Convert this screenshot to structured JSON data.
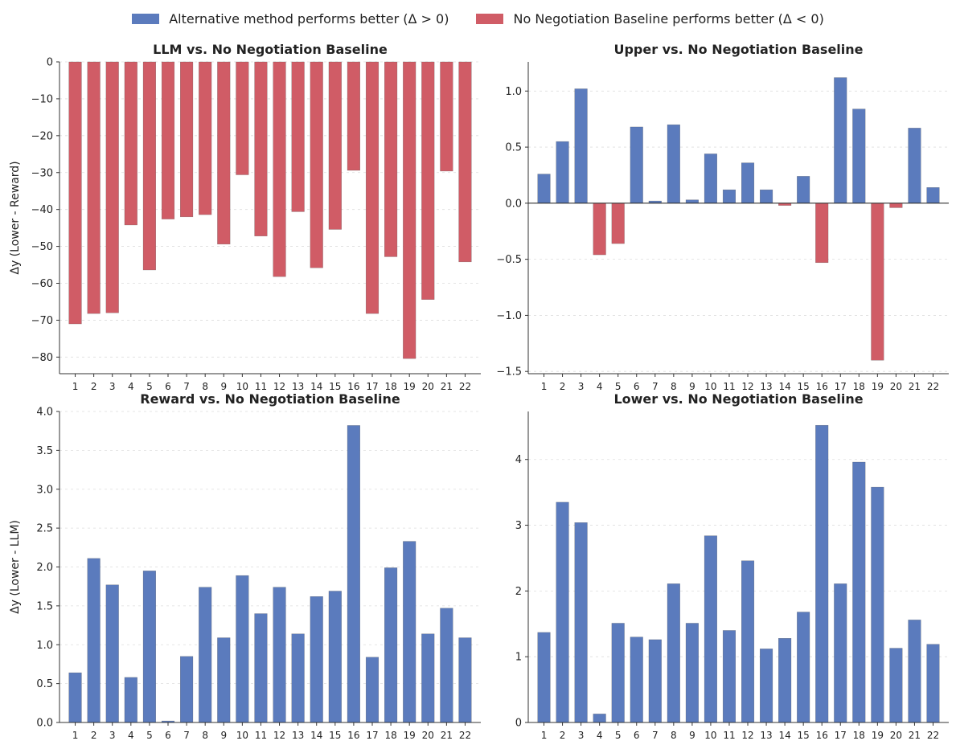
{
  "legend": {
    "positive_label": "Alternative method performs better (Δ > 0)",
    "negative_label": "No Negotiation Baseline performs better (Δ < 0)",
    "positive_color": "#5b7bbd",
    "negative_color": "#d05c66"
  },
  "chart_data": [
    {
      "type": "bar",
      "title": "LLM vs. No Negotiation Baseline",
      "ylabel": "Δy (Lower - Reward)",
      "xlabel": "",
      "categories": [
        "1",
        "2",
        "3",
        "4",
        "5",
        "6",
        "7",
        "8",
        "9",
        "10",
        "11",
        "12",
        "13",
        "14",
        "15",
        "16",
        "17",
        "18",
        "19",
        "20",
        "21",
        "22"
      ],
      "values": [
        -71.0,
        -68.2,
        -68.0,
        -44.2,
        -56.4,
        -42.6,
        -42.0,
        -41.4,
        -49.4,
        -30.6,
        -47.2,
        -58.2,
        -40.6,
        -55.8,
        -45.4,
        -29.4,
        -68.2,
        -52.8,
        -80.4,
        -64.4,
        -29.6,
        -54.2
      ],
      "ylim": [
        -84.5,
        0
      ],
      "yticks": [
        0,
        -10,
        -20,
        -30,
        -40,
        -50,
        -60,
        -70,
        -80
      ],
      "yticklabels": [
        "0",
        "−10",
        "−20",
        "−30",
        "−40",
        "−50",
        "−60",
        "−70",
        "−80"
      ]
    },
    {
      "type": "bar",
      "title": "Upper vs. No Negotiation Baseline",
      "ylabel": "",
      "xlabel": "",
      "categories": [
        "1",
        "2",
        "3",
        "4",
        "5",
        "6",
        "7",
        "8",
        "9",
        "10",
        "11",
        "12",
        "13",
        "14",
        "15",
        "16",
        "17",
        "18",
        "19",
        "20",
        "21",
        "22"
      ],
      "values": [
        0.26,
        0.55,
        1.02,
        -0.46,
        -0.36,
        0.68,
        0.02,
        0.7,
        0.03,
        0.44,
        0.12,
        0.36,
        0.12,
        -0.02,
        0.24,
        -0.53,
        1.12,
        0.84,
        -1.4,
        -0.04,
        0.67,
        0.14
      ],
      "ylim": [
        -1.52,
        1.26
      ],
      "yticks": [
        1.0,
        0.5,
        0.0,
        -0.5,
        -1.0,
        -1.5
      ],
      "yticklabels": [
        "1.0",
        "0.5",
        "0.0",
        "−0.5",
        "−1.0",
        "−1.5"
      ]
    },
    {
      "type": "bar",
      "title": "Reward vs. No Negotiation Baseline",
      "ylabel": "Δy (Lower - LLM)",
      "xlabel": "",
      "categories": [
        "1",
        "2",
        "3",
        "4",
        "5",
        "6",
        "7",
        "8",
        "9",
        "10",
        "11",
        "12",
        "13",
        "14",
        "15",
        "16",
        "17",
        "18",
        "19",
        "20",
        "21",
        "22"
      ],
      "values": [
        0.64,
        2.11,
        1.77,
        0.58,
        1.95,
        0.02,
        0.85,
        1.74,
        1.09,
        1.89,
        1.4,
        1.74,
        1.14,
        1.62,
        1.69,
        3.82,
        0.84,
        1.99,
        2.33,
        1.14,
        1.47,
        1.09
      ],
      "ylim": [
        0,
        4.0
      ],
      "yticks": [
        4.0,
        3.5,
        3.0,
        2.5,
        2.0,
        1.5,
        1.0,
        0.5,
        0.0
      ],
      "yticklabels": [
        "4.0",
        "3.5",
        "3.0",
        "2.5",
        "2.0",
        "1.5",
        "1.0",
        "0.5",
        "0.0"
      ]
    },
    {
      "type": "bar",
      "title": "Lower vs. No Negotiation Baseline",
      "ylabel": "",
      "xlabel": "",
      "categories": [
        "1",
        "2",
        "3",
        "4",
        "5",
        "6",
        "7",
        "8",
        "9",
        "10",
        "11",
        "12",
        "13",
        "14",
        "15",
        "16",
        "17",
        "18",
        "19",
        "20",
        "21",
        "22"
      ],
      "values": [
        1.37,
        3.35,
        3.04,
        0.13,
        1.51,
        1.3,
        1.26,
        2.11,
        1.51,
        2.84,
        1.4,
        2.46,
        1.12,
        1.28,
        1.68,
        4.52,
        2.11,
        3.96,
        3.58,
        1.13,
        1.56,
        1.19
      ],
      "ylim": [
        0,
        4.73
      ],
      "yticks": [
        4,
        3,
        2,
        1,
        0
      ],
      "yticklabels": [
        "4",
        "3",
        "2",
        "1",
        "0"
      ]
    }
  ]
}
